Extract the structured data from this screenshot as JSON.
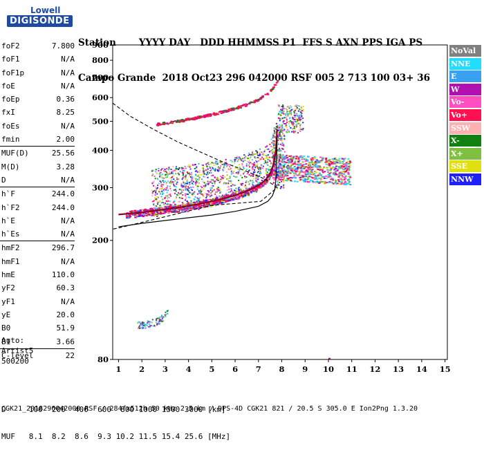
{
  "logo": {
    "top": "Lowell",
    "bottom": "DIGISONDE"
  },
  "header": {
    "line1": "Station       YYYY DAY   DDD HHMMSS P1  FFS S AXN PPS IGA PS",
    "line2": "Campo Grande  2018 Oct23 296 042000 RSF 005 2 713 100 03+ 36"
  },
  "params": {
    "group1": [
      {
        "label": "foF2",
        "value": "7.800"
      },
      {
        "label": "foF1",
        "value": "N/A"
      },
      {
        "label": "foF1p",
        "value": "N/A"
      },
      {
        "label": "foE",
        "value": "N/A"
      },
      {
        "label": "foEp",
        "value": "0.36"
      },
      {
        "label": "fxI",
        "value": "8.25"
      },
      {
        "label": "foEs",
        "value": "N/A"
      },
      {
        "label": "fmin",
        "value": "2.00"
      }
    ],
    "group2": [
      {
        "label": "MUF(D)",
        "value": "25.56"
      },
      {
        "label": "M(D)",
        "value": "3.28"
      },
      {
        "label": "D",
        "value": "N/A"
      }
    ],
    "group3": [
      {
        "label": "h`F",
        "value": "244.0"
      },
      {
        "label": "h`F2",
        "value": "244.0"
      },
      {
        "label": "h`E",
        "value": "N/A"
      },
      {
        "label": "h`Es",
        "value": "N/A"
      }
    ],
    "group4": [
      {
        "label": "hmF2",
        "value": "296.7"
      },
      {
        "label": "hmF1",
        "value": "N/A"
      },
      {
        "label": "hmE",
        "value": "110.0"
      },
      {
        "label": "yF2",
        "value": "60.3"
      },
      {
        "label": "yF1",
        "value": "N/A"
      },
      {
        "label": "yE",
        "value": "20.0"
      },
      {
        "label": "B0",
        "value": "51.9"
      },
      {
        "label": "B1",
        "value": "3.66"
      }
    ],
    "group5": [
      {
        "label": "C-level",
        "value": "22"
      }
    ]
  },
  "auto": {
    "line1": "Auto:",
    "line2": "Artist5",
    "line3": "500200"
  },
  "legend": [
    {
      "label": "NoVal",
      "color": "#808080"
    },
    {
      "label": "NNE",
      "color": "#22ddff"
    },
    {
      "label": "E",
      "color": "#3aa0f0"
    },
    {
      "label": "W",
      "color": "#b010b0"
    },
    {
      "label": "Vo-",
      "color": "#ff4fc0"
    },
    {
      "label": "Vo+",
      "color": "#ff1050"
    },
    {
      "label": "SSW",
      "color": "#ffb0b0"
    },
    {
      "label": "X-",
      "color": "#108010"
    },
    {
      "label": "X+",
      "color": "#80c040"
    },
    {
      "label": "SSE",
      "color": "#e0e010"
    },
    {
      "label": "NNW",
      "color": "#2020ff"
    }
  ],
  "footer": {
    "d_row": "D     100  200  400  600  800 1000 1500 3000 [km]",
    "muf_row": "MUF   8.1  8.2  8.6  9.3 10.2 11.5 15.4 25.6 [MHz]",
    "source": "CGK21_2018296042000.RSF / 284fx512h 50 kHz 2.5 km / DPS-4D CGK21 821 / 20.5 S 305.0 E Ion2Png 1.3.20"
  },
  "chart_data": {
    "type": "scatter",
    "x_ticks": [
      1,
      2,
      3,
      4,
      5,
      6,
      7,
      8,
      9,
      10,
      11,
      12,
      13,
      14,
      15
    ],
    "y_ticks": [
      80,
      200,
      300,
      400,
      500,
      600,
      700,
      800,
      900
    ],
    "xlim": [
      0.75,
      15.1
    ],
    "ylim": [
      80,
      900
    ],
    "y_scale": "log",
    "grid": false,
    "trace_o": {
      "name": "O-mode trace",
      "x": [
        1.0,
        1.5,
        2.0,
        2.5,
        3.0,
        3.5,
        4.0,
        4.5,
        5.0,
        5.5,
        6.0,
        6.5,
        7.0,
        7.3,
        7.5,
        7.65,
        7.75,
        7.8
      ],
      "y": [
        244,
        246,
        248,
        251,
        254,
        257,
        261,
        265,
        270,
        276,
        283,
        292,
        305,
        318,
        335,
        360,
        400,
        470
      ]
    },
    "trace_f2_multihop": {
      "x": [
        2.6,
        3.0,
        3.5,
        4.0,
        4.5,
        5.0,
        5.5,
        6.0,
        6.5,
        7.0,
        7.4,
        7.6,
        7.8
      ],
      "y": [
        490,
        495,
        502,
        510,
        520,
        530,
        542,
        556,
        572,
        596,
        624,
        650,
        690
      ]
    },
    "profile_solid": {
      "x": [
        1.0,
        2.0,
        3.0,
        4.0,
        5.0,
        6.0,
        7.0,
        7.4,
        7.6,
        7.7,
        7.75,
        7.78,
        7.8
      ],
      "y": [
        222,
        228,
        233,
        238,
        243,
        250,
        260,
        270,
        282,
        296,
        320,
        380,
        440
      ]
    },
    "profile_dashed": {
      "x": [
        0.75,
        1.5,
        2.5,
        3.5,
        4.5,
        5.5,
        6.5,
        7.3,
        7.8,
        7.1,
        5.0,
        3.0,
        1.0,
        0.75
      ],
      "y": [
        575,
        520,
        470,
        428,
        395,
        365,
        340,
        320,
        300,
        270,
        262,
        240,
        220,
        218
      ]
    },
    "e_layer_echoes": {
      "x": [
        1.8,
        2.0,
        2.2,
        2.4,
        2.6,
        2.8,
        3.0,
        3.1
      ],
      "y": [
        104,
        103,
        104,
        105,
        106,
        108,
        112,
        115
      ]
    }
  }
}
